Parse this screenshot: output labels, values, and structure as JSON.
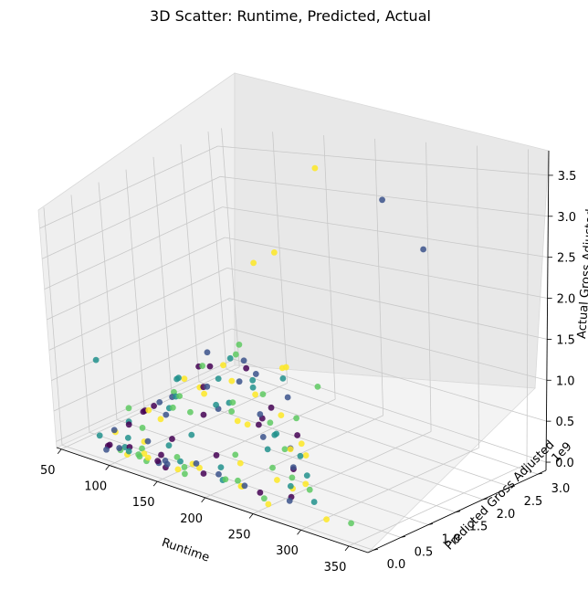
{
  "chart_data": {
    "type": "scatter",
    "title": "3D Scatter: Runtime, Predicted, Actual",
    "xlabel": "Runtime",
    "ylabel": "Predicted Gross Adjusted",
    "zlabel": "Actual Gross Adjusted",
    "y_offset_text": "1e9",
    "z_offset_text": "1e9",
    "xlim": [
      45,
      370
    ],
    "ylim": [
      -0.1,
      3.15
    ],
    "zlim": [
      -0.1,
      3.8
    ],
    "x_ticks": [
      "50",
      "100",
      "150",
      "200",
      "250",
      "300",
      "350"
    ],
    "y_ticks": [
      "0.0",
      "0.5",
      "1.0",
      "1.5",
      "2.0",
      "2.5",
      "3.0"
    ],
    "z_ticks": [
      "0.0",
      "0.5",
      "1.0",
      "1.5",
      "2.0",
      "2.5",
      "3.0",
      "3.5"
    ],
    "grid": true,
    "colormap": "viridis",
    "colors": [
      "#440154",
      "#3b528b",
      "#21918c",
      "#5ec962",
      "#fde725"
    ],
    "points": [
      [
        160,
        2.8,
        3.5,
        4
      ],
      [
        220,
        2.9,
        3.1,
        1
      ],
      [
        150,
        2.2,
        2.5,
        4
      ],
      [
        140,
        2.0,
        2.4,
        4
      ],
      [
        260,
        2.9,
        2.5,
        1
      ],
      [
        330,
        0.3,
        0.0,
        3
      ],
      [
        310,
        0.2,
        0.0,
        4
      ],
      [
        175,
        0.9,
        0.05,
        3
      ],
      [
        180,
        1.2,
        1.0,
        2
      ],
      [
        150,
        1.5,
        1.4,
        3
      ],
      [
        70,
        0.3,
        1.3,
        2
      ],
      [
        120,
        0.9,
        1.0,
        2
      ],
      [
        170,
        1.0,
        1.5,
        2
      ],
      [
        190,
        1.1,
        1.3,
        1
      ],
      [
        210,
        1.3,
        1.4,
        4
      ],
      [
        200,
        1.4,
        1.3,
        4
      ],
      [
        230,
        1.5,
        1.1,
        3
      ],
      [
        240,
        0.8,
        0.5,
        4
      ],
      [
        250,
        0.9,
        0.1,
        2
      ],
      [
        260,
        0.7,
        0.1,
        4
      ],
      [
        270,
        0.6,
        0.1,
        3
      ],
      [
        280,
        0.5,
        0.0,
        2
      ],
      [
        210,
        0.4,
        0.3,
        4
      ],
      [
        160,
        0.4,
        0.5,
        2
      ],
      [
        130,
        0.6,
        0.7,
        3
      ],
      [
        110,
        0.5,
        0.6,
        4
      ],
      [
        100,
        0.3,
        0.4,
        0
      ],
      [
        90,
        0.2,
        0.3,
        1
      ],
      [
        80,
        0.1,
        0.2,
        2
      ],
      [
        95,
        0.4,
        0.6,
        3
      ],
      [
        105,
        0.2,
        0.1,
        0
      ],
      [
        115,
        0.3,
        0.2,
        4
      ],
      [
        125,
        0.2,
        0.3,
        1
      ],
      [
        135,
        0.4,
        0.2,
        2
      ],
      [
        145,
        0.3,
        0.4,
        0
      ],
      [
        155,
        0.2,
        0.2,
        3
      ],
      [
        165,
        0.3,
        0.1,
        4
      ],
      [
        175,
        0.2,
        0.2,
        1
      ],
      [
        185,
        0.4,
        0.3,
        0
      ],
      [
        195,
        0.3,
        0.2,
        2
      ],
      [
        205,
        0.2,
        0.1,
        3
      ],
      [
        215,
        0.3,
        0.0,
        4
      ],
      [
        225,
        0.2,
        0.1,
        1
      ],
      [
        235,
        0.3,
        0.0,
        0
      ],
      [
        245,
        0.2,
        0.0,
        3
      ],
      [
        255,
        0.1,
        0.0,
        4
      ],
      [
        100,
        0.6,
        0.5,
        0
      ],
      [
        110,
        0.8,
        0.4,
        1
      ],
      [
        120,
        0.7,
        0.6,
        2
      ],
      [
        130,
        0.9,
        0.5,
        3
      ],
      [
        140,
        1.0,
        0.8,
        4
      ],
      [
        150,
        0.8,
        0.6,
        0
      ],
      [
        160,
        0.9,
        0.7,
        1
      ],
      [
        170,
        0.7,
        0.9,
        2
      ],
      [
        180,
        0.8,
        0.8,
        3
      ],
      [
        190,
        0.9,
        0.6,
        4
      ],
      [
        200,
        1.0,
        0.7,
        0
      ],
      [
        210,
        0.8,
        0.9,
        1
      ],
      [
        220,
        0.9,
        0.6,
        2
      ],
      [
        230,
        1.1,
        0.8,
        3
      ],
      [
        240,
        1.0,
        0.5,
        4
      ],
      [
        90,
        0.1,
        0.1,
        0
      ],
      [
        100,
        0.1,
        0.1,
        1
      ],
      [
        110,
        0.1,
        0.1,
        2
      ],
      [
        120,
        0.1,
        0.1,
        3
      ],
      [
        130,
        0.1,
        0.1,
        4
      ],
      [
        140,
        0.1,
        0.1,
        0
      ],
      [
        150,
        0.1,
        0.1,
        1
      ],
      [
        95,
        0.2,
        0.0,
        3
      ],
      [
        105,
        0.15,
        0.0,
        4
      ],
      [
        115,
        0.2,
        0.0,
        3
      ],
      [
        125,
        0.15,
        0.0,
        3
      ],
      [
        135,
        0.2,
        0.0,
        1
      ],
      [
        145,
        0.15,
        0.0,
        0
      ],
      [
        155,
        0.2,
        0.0,
        4
      ],
      [
        165,
        0.15,
        0.0,
        3
      ],
      [
        85,
        0.3,
        0.2,
        4
      ],
      [
        88,
        0.5,
        0.3,
        2
      ],
      [
        92,
        0.7,
        0.4,
        0
      ],
      [
        98,
        0.9,
        0.5,
        1
      ],
      [
        102,
        1.1,
        0.6,
        3
      ],
      [
        108,
        1.2,
        0.8,
        4
      ],
      [
        112,
        1.0,
        0.9,
        2
      ],
      [
        118,
        1.3,
        1.0,
        0
      ],
      [
        122,
        1.4,
        1.2,
        1
      ],
      [
        128,
        1.2,
        1.1,
        3
      ],
      [
        132,
        1.5,
        1.0,
        4
      ],
      [
        138,
        1.3,
        0.9,
        2
      ],
      [
        142,
        1.1,
        1.2,
        0
      ],
      [
        148,
        1.6,
        1.1,
        1
      ],
      [
        152,
        1.4,
        1.3,
        3
      ],
      [
        158,
        1.2,
        1.0,
        4
      ],
      [
        162,
        1.5,
        0.9,
        2
      ],
      [
        168,
        1.3,
        1.2,
        0
      ],
      [
        172,
        1.1,
        1.1,
        1
      ],
      [
        178,
        1.4,
        0.8,
        3
      ],
      [
        182,
        1.2,
        0.9,
        4
      ],
      [
        188,
        1.6,
        1.0,
        2
      ],
      [
        192,
        1.3,
        0.7,
        0
      ],
      [
        198,
        1.5,
        0.8,
        1
      ],
      [
        202,
        1.1,
        0.6,
        3
      ],
      [
        208,
        1.2,
        0.7,
        4
      ],
      [
        212,
        1.0,
        0.5,
        2
      ],
      [
        218,
        1.3,
        0.4,
        0
      ],
      [
        222,
        1.1,
        0.3,
        1
      ],
      [
        228,
        0.9,
        0.4,
        3
      ],
      [
        232,
        1.2,
        0.2,
        4
      ],
      [
        238,
        1.0,
        0.3,
        2
      ],
      [
        242,
        0.8,
        0.2,
        0
      ],
      [
        248,
        0.7,
        0.3,
        1
      ],
      [
        252,
        0.6,
        0.2,
        3
      ],
      [
        258,
        0.5,
        0.1,
        4
      ],
      [
        262,
        0.4,
        0.2,
        2
      ],
      [
        268,
        0.3,
        0.1,
        0
      ],
      [
        272,
        0.2,
        0.1,
        1
      ],
      [
        92,
        0.4,
        0.1,
        2
      ],
      [
        96,
        0.6,
        0.2,
        3
      ],
      [
        104,
        0.8,
        0.3,
        4
      ],
      [
        116,
        0.5,
        0.7,
        0
      ],
      [
        124,
        0.7,
        0.8,
        1
      ],
      [
        134,
        0.6,
        0.9,
        2
      ],
      [
        144,
        0.5,
        1.0,
        3
      ],
      [
        154,
        0.7,
        1.1,
        4
      ],
      [
        164,
        0.6,
        1.2,
        0
      ],
      [
        174,
        0.5,
        1.3,
        1
      ],
      [
        184,
        0.7,
        1.0,
        2
      ],
      [
        194,
        0.6,
        1.1,
        3
      ],
      [
        204,
        0.5,
        0.9,
        4
      ],
      [
        214,
        0.7,
        0.8,
        0
      ],
      [
        224,
        0.6,
        0.7,
        1
      ],
      [
        234,
        0.5,
        0.6,
        2
      ],
      [
        244,
        0.4,
        0.4,
        3
      ],
      [
        254,
        0.3,
        0.3,
        4
      ],
      [
        82,
        0.2,
        0.0,
        0
      ],
      [
        86,
        0.1,
        0.0,
        1
      ],
      [
        94,
        0.3,
        0.0,
        2
      ],
      [
        106,
        0.4,
        0.0,
        3
      ],
      [
        114,
        0.3,
        0.0,
        4
      ],
      [
        126,
        0.4,
        0.0,
        0
      ],
      [
        136,
        0.3,
        0.0,
        1
      ],
      [
        146,
        0.4,
        0.0,
        2
      ],
      [
        156,
        0.3,
        0.0,
        3
      ],
      [
        166,
        0.4,
        0.0,
        4
      ],
      [
        176,
        0.3,
        0.0,
        0
      ],
      [
        186,
        0.4,
        0.0,
        1
      ],
      [
        196,
        0.3,
        0.0,
        2
      ],
      [
        206,
        0.4,
        0.0,
        3
      ],
      [
        216,
        0.3,
        0.0,
        4
      ]
    ]
  }
}
